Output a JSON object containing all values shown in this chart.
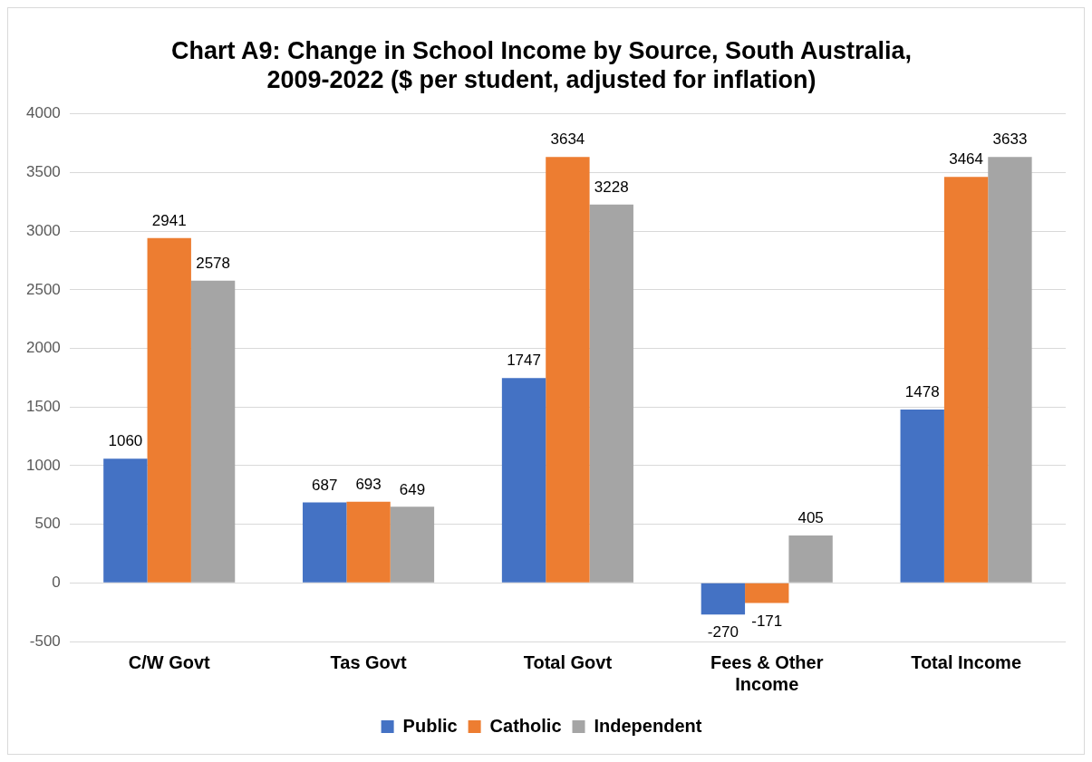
{
  "chart_data": {
    "type": "bar",
    "title": "Chart A9: Change in School Income by Source, South Australia, 2009-2022 ($ per student, adjusted for inflation)",
    "categories": [
      "C/W Govt",
      "Tas Govt",
      "Total Govt",
      "Fees & Other Income",
      "Total Income"
    ],
    "series": [
      {
        "name": "Public",
        "color": "#4472c4",
        "values": [
          1060,
          687,
          1747,
          -270,
          1478
        ]
      },
      {
        "name": "Catholic",
        "color": "#ed7d31",
        "values": [
          2941,
          693,
          3634,
          -171,
          3464
        ]
      },
      {
        "name": "Independent",
        "color": "#a5a5a5",
        "values": [
          2578,
          649,
          3228,
          405,
          3633
        ]
      }
    ],
    "ylim": [
      -500,
      4000
    ],
    "yticks": [
      -500,
      0,
      500,
      1000,
      1500,
      2000,
      2500,
      3000,
      3500,
      4000
    ],
    "grid": "y",
    "legend": "bottom",
    "data_labels": true
  }
}
